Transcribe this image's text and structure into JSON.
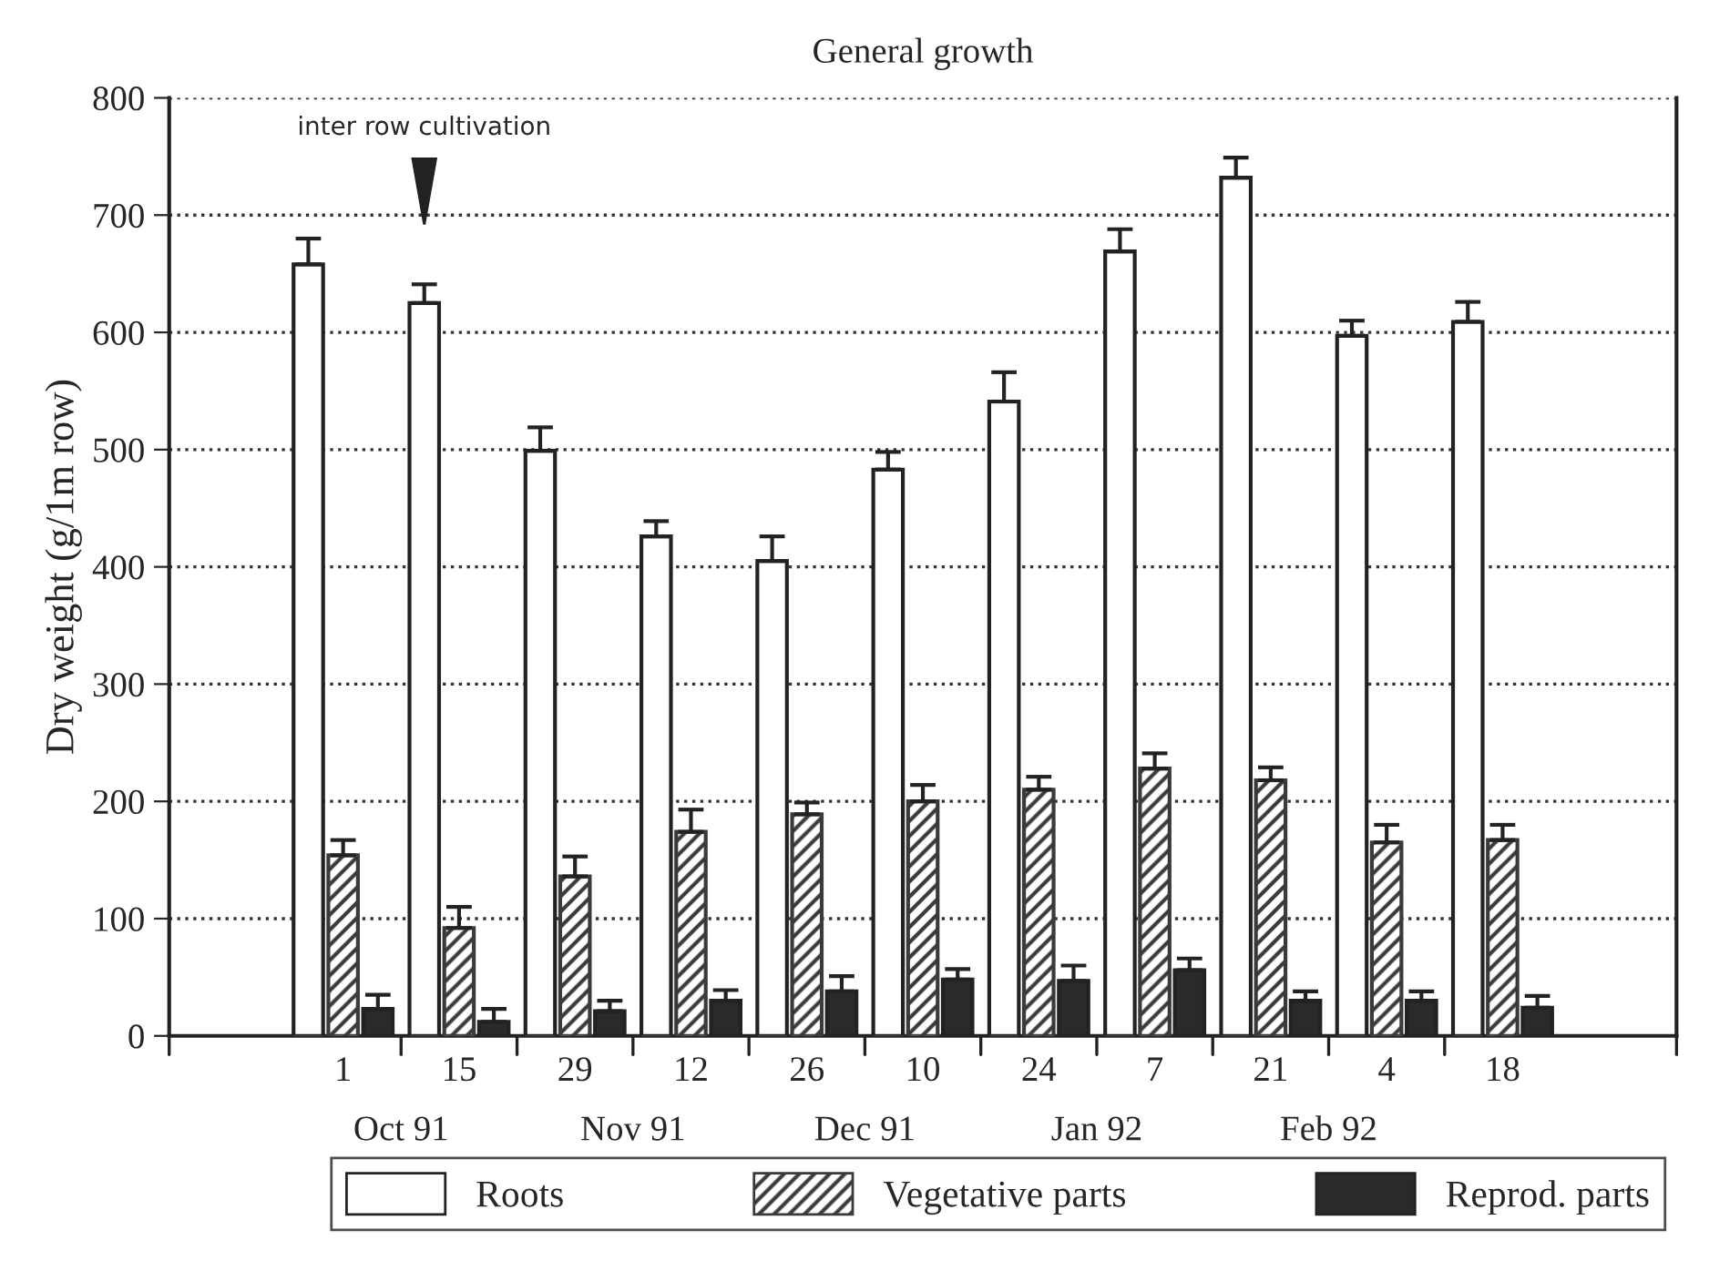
{
  "chart_data": {
    "type": "bar",
    "title": "General growth",
    "ylabel": "Dry weight (g/1m row)",
    "categories": [
      null,
      "1",
      "15",
      "29",
      "12",
      "26",
      "10",
      "24",
      "7",
      "21",
      "4",
      "18",
      null
    ],
    "series": [
      {
        "name": "Roots",
        "color": "#ffffff",
        "values": [
          null,
          658,
          625,
          499,
          426,
          405,
          483,
          541,
          669,
          732,
          597,
          609,
          null
        ],
        "errors": [
          null,
          [
            658,
            680
          ],
          [
            625,
            641
          ],
          [
            499,
            519
          ],
          [
            426,
            439
          ],
          [
            405,
            426
          ],
          [
            483,
            498
          ],
          [
            541,
            566
          ],
          [
            669,
            688
          ],
          [
            732,
            749
          ],
          [
            597,
            610
          ],
          [
            609,
            626
          ],
          null
        ]
      },
      {
        "name": "Vegetative parts",
        "color": "#3a3a3a",
        "values": [
          null,
          154,
          92,
          136,
          174,
          189,
          200,
          210,
          228,
          218,
          165,
          167,
          null
        ],
        "errors": [
          null,
          [
            154,
            167
          ],
          [
            92,
            110
          ],
          [
            136,
            153
          ],
          [
            174,
            193
          ],
          [
            189,
            199
          ],
          [
            200,
            214
          ],
          [
            210,
            221
          ],
          [
            228,
            241
          ],
          [
            218,
            229
          ],
          [
            165,
            180
          ],
          [
            167,
            180
          ],
          null
        ]
      },
      {
        "name": "Reprod. parts",
        "color": "#2a2a2a",
        "values": [
          null,
          23,
          12,
          21,
          30,
          38,
          48,
          47,
          56,
          30,
          30,
          24,
          null
        ],
        "errors": [
          null,
          [
            23,
            35
          ],
          [
            12,
            23
          ],
          [
            21,
            30
          ],
          [
            30,
            39
          ],
          [
            38,
            51
          ],
          [
            48,
            57
          ],
          [
            47,
            60
          ],
          [
            56,
            66
          ],
          [
            30,
            38
          ],
          [
            30,
            38
          ],
          [
            24,
            34
          ],
          null
        ]
      }
    ],
    "ylim": [
      0,
      800
    ],
    "yticks": [
      0,
      100,
      200,
      300,
      400,
      500,
      600,
      700,
      800
    ],
    "grid": "y",
    "legend": "bottom",
    "annotations": [
      "inter row cultivation",
      "Oct 91",
      "Nov 91",
      "Dec 91",
      "Jan 92",
      "Feb 92"
    ]
  }
}
